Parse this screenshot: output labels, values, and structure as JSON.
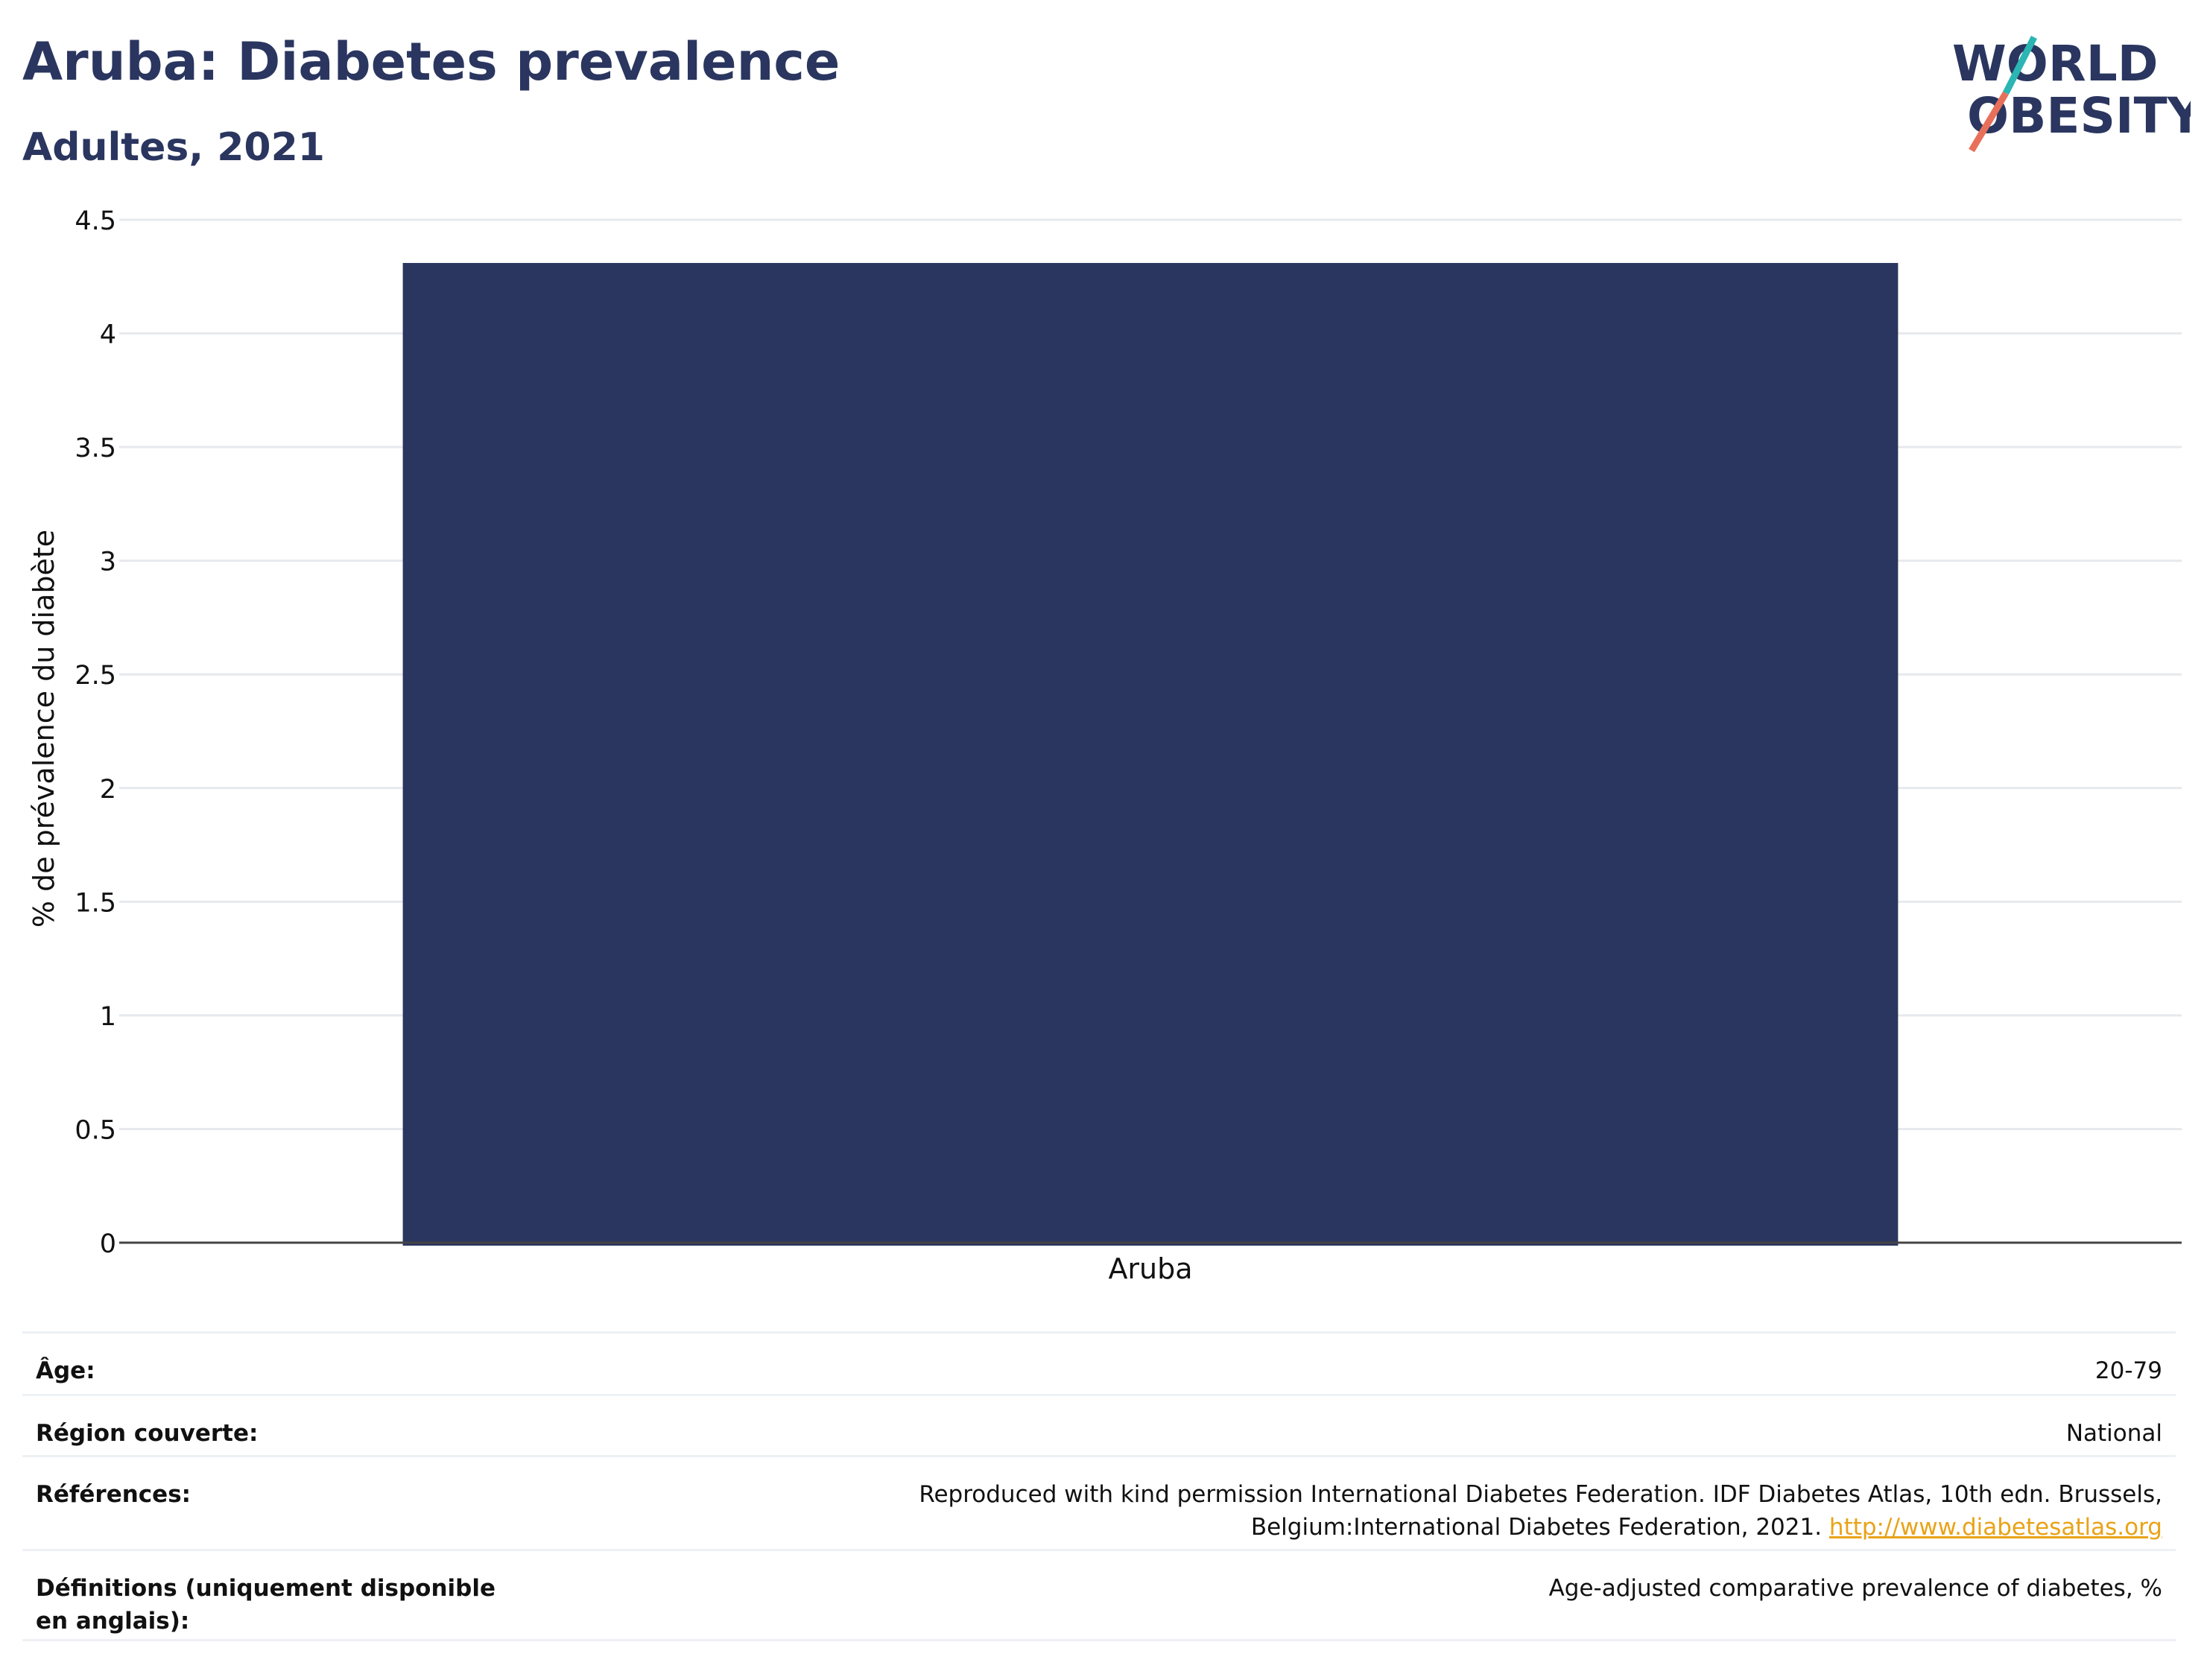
{
  "header": {
    "title": "Aruba: Diabetes prevalence",
    "subtitle": "Adultes, 2021"
  },
  "logo": {
    "line1": "WORLD",
    "line2": "OBESITY",
    "icon": "world-obesity-logo",
    "colors": {
      "text": "#2a365f",
      "teal": "#2bb5b3",
      "coral": "#e8705a"
    }
  },
  "chart_data": {
    "type": "bar",
    "categories": [
      "Aruba"
    ],
    "values": [
      4.31
    ],
    "title": "Aruba: Diabetes prevalence",
    "subtitle": "Adultes, 2021",
    "xlabel": "",
    "ylabel": "% de prévalence du diabète",
    "ylim": [
      0,
      4.5
    ],
    "yticks": [
      "0",
      "0.5",
      "1",
      "1.5",
      "2",
      "2.5",
      "3",
      "3.5",
      "4",
      "4.5"
    ],
    "grid": true,
    "legend": "none",
    "bar_color": "#2a365f"
  },
  "info": {
    "rows": [
      {
        "label": "Âge:",
        "value": "20-79"
      },
      {
        "label": "Région couverte:",
        "value": "National"
      },
      {
        "label": "Références:",
        "value": "Reproduced with kind permission International Diabetes Federation.  IDF Diabetes Atlas, 10th edn. Brussels, Belgium:International Diabetes Federation, 2021. ",
        "link": "http://www.diabetesatlas.org"
      },
      {
        "label": "Définitions (uniquement disponible en anglais):",
        "value": "Age-adjusted comparative prevalence of diabetes, %"
      }
    ]
  }
}
